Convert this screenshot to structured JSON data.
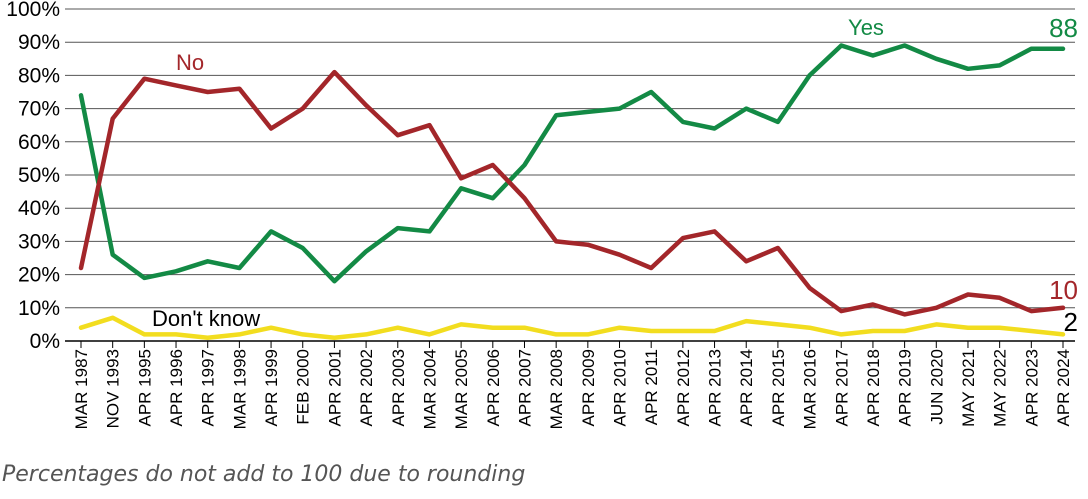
{
  "chart_data": {
    "type": "line",
    "title": "",
    "xlabel": "",
    "ylabel": "",
    "ylim": [
      0,
      100
    ],
    "yticks": [
      "0%",
      "10%",
      "20%",
      "30%",
      "40%",
      "50%",
      "60%",
      "70%",
      "80%",
      "90%",
      "100%"
    ],
    "grid": true,
    "categories": [
      "MAR 1987",
      "NOV 1993",
      "APR 1995",
      "APR 1996",
      "APR 1997",
      "MAR 1998",
      "APR 1999",
      "FEB 2000",
      "APR 2001",
      "APR 2002",
      "APR 2003",
      "MAR 2004",
      "MAR 2005",
      "APR 2006",
      "APR 2007",
      "MAR 2008",
      "APR 2009",
      "APR 2010",
      "APR 2011",
      "APR 2012",
      "APR 2013",
      "APR 2014",
      "APR 2015",
      "MAR 2016",
      "APR 2017",
      "APR 2018",
      "APR 2019",
      "JUN 2020",
      "MAY 2021",
      "MAY 2022",
      "APR 2023",
      "APR 2024"
    ],
    "series": [
      {
        "name": "Yes",
        "color": "#138a45",
        "end_label": "88",
        "values": [
          74,
          26,
          19,
          21,
          24,
          22,
          33,
          28,
          18,
          27,
          34,
          33,
          46,
          43,
          53,
          68,
          69,
          70,
          75,
          66,
          64,
          70,
          66,
          80,
          89,
          86,
          89,
          85,
          82,
          83,
          88,
          88
        ]
      },
      {
        "name": "No",
        "color": "#a3262a",
        "end_label": "10",
        "values": [
          22,
          67,
          79,
          77,
          75,
          76,
          64,
          70,
          81,
          71,
          62,
          65,
          49,
          53,
          43,
          30,
          29,
          26,
          22,
          31,
          33,
          24,
          28,
          16,
          9,
          11,
          8,
          10,
          14,
          13,
          9,
          10
        ]
      },
      {
        "name": "Don't know",
        "color": "#f2dd1f",
        "end_label": "2",
        "values": [
          4,
          7,
          2,
          2,
          1,
          2,
          4,
          2,
          1,
          2,
          4,
          2,
          5,
          4,
          4,
          2,
          2,
          4,
          3,
          3,
          3,
          6,
          5,
          4,
          2,
          3,
          3,
          5,
          4,
          4,
          3,
          2
        ]
      }
    ]
  },
  "footnote": "Percentages do not add to 100 due to rounding"
}
